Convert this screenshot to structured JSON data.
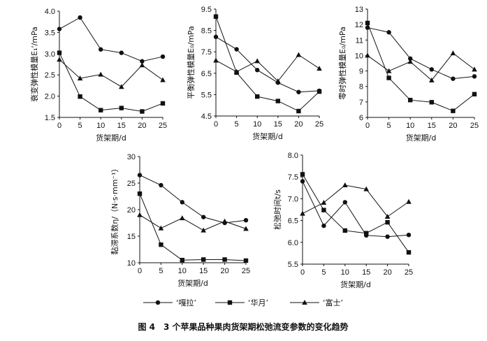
{
  "caption": "图 4　3 个苹果品种果肉货架期松弛流变参数的变化趋势",
  "legend": [
    "‘嘎拉’",
    "‘华月’",
    "‘富士’"
  ],
  "chart_data": [
    {
      "type": "line",
      "xlabel": "货架期/d",
      "ylabel": "衰变弹性模量E₁'/mPa",
      "x": [
        0,
        5,
        10,
        15,
        20,
        25
      ],
      "xticks": [
        "0",
        "5",
        "10",
        "15",
        "20",
        "25"
      ],
      "ylim": [
        1.5,
        4.0
      ],
      "yticks": [
        "1.5",
        "2.0",
        "2.5",
        "3.0",
        "3.5",
        "4.0"
      ],
      "series": [
        {
          "name": "‘嘎拉’",
          "marker": "circle",
          "values": [
            3.58,
            3.85,
            3.1,
            3.02,
            2.82,
            2.93
          ]
        },
        {
          "name": "‘华月’",
          "marker": "square",
          "values": [
            3.02,
            1.99,
            1.67,
            1.72,
            1.64,
            1.83
          ]
        },
        {
          "name": "‘富士’",
          "marker": "triangle",
          "values": [
            2.86,
            2.42,
            2.51,
            2.22,
            2.73,
            2.38
          ]
        }
      ]
    },
    {
      "type": "line",
      "xlabel": "货架期/d",
      "ylabel": "平衡弹性模量E₀/mPa",
      "x": [
        0,
        5,
        10,
        15,
        20,
        25
      ],
      "xticks": [
        "0",
        "5",
        "10",
        "15",
        "20",
        "25"
      ],
      "ylim": [
        4.5,
        9.5
      ],
      "yticks": [
        "4.5",
        "5.5",
        "6.5",
        "7.5",
        "8.5",
        "9.5"
      ],
      "series": [
        {
          "name": "‘嘎拉’",
          "marker": "circle",
          "values": [
            8.2,
            7.62,
            6.65,
            6.06,
            5.62,
            5.68
          ]
        },
        {
          "name": "‘华月’",
          "marker": "square",
          "values": [
            9.15,
            6.53,
            5.41,
            5.2,
            4.73,
            5.64
          ]
        },
        {
          "name": "‘富士’",
          "marker": "triangle",
          "values": [
            7.1,
            6.57,
            7.07,
            6.13,
            7.36,
            6.72
          ]
        }
      ]
    },
    {
      "type": "line",
      "xlabel": "货架期/d",
      "ylabel": "零时弹性模量E₀/mPa",
      "x": [
        0,
        5,
        10,
        15,
        20,
        25
      ],
      "xticks": [
        "0",
        "5",
        "10",
        "15",
        "20",
        "25"
      ],
      "ylim": [
        6,
        13
      ],
      "yticks": [
        "6",
        "7",
        "8",
        "9",
        "10",
        "11",
        "12",
        "13"
      ],
      "series": [
        {
          "name": "‘嘎拉’",
          "marker": "circle",
          "values": [
            11.8,
            11.5,
            9.8,
            9.1,
            8.5,
            8.65
          ]
        },
        {
          "name": "‘华月’",
          "marker": "square",
          "values": [
            12.1,
            8.55,
            7.12,
            6.98,
            6.42,
            7.5
          ]
        },
        {
          "name": "‘富士’",
          "marker": "triangle",
          "values": [
            10.0,
            9.0,
            9.6,
            8.4,
            10.15,
            9.1
          ]
        }
      ]
    },
    {
      "type": "line",
      "xlabel": "货架期/d",
      "ylabel": "黏滞系数η/（N·s·mm⁻¹）",
      "x": [
        0,
        5,
        10,
        15,
        20,
        25
      ],
      "xticks": [
        "0",
        "5",
        "10",
        "15",
        "20",
        "25"
      ],
      "ylim": [
        10,
        30
      ],
      "yticks": [
        "10",
        "15",
        "20",
        "25",
        "30"
      ],
      "series": [
        {
          "name": "‘嘎拉’",
          "marker": "circle",
          "values": [
            26.5,
            24.6,
            21.4,
            18.6,
            17.5,
            18.0
          ]
        },
        {
          "name": "‘华月’",
          "marker": "square",
          "values": [
            23.0,
            13.4,
            10.5,
            10.6,
            10.6,
            10.4
          ]
        },
        {
          "name": "‘富士’",
          "marker": "triangle",
          "values": [
            19.0,
            16.5,
            18.4,
            16.1,
            17.8,
            16.4
          ]
        }
      ]
    },
    {
      "type": "line",
      "xlabel": "货架期/d",
      "ylabel": "松弛时间t/s",
      "x": [
        0,
        5,
        10,
        15,
        20,
        25
      ],
      "xticks": [
        "0",
        "5",
        "10",
        "15",
        "20",
        "25"
      ],
      "ylim": [
        5.5,
        8.0
      ],
      "yticks": [
        "5.5",
        "6.0",
        "6.5",
        "7.0",
        "7.5",
        "8.0"
      ],
      "series": [
        {
          "name": "‘嘎拉’",
          "marker": "circle",
          "values": [
            7.4,
            6.38,
            6.92,
            6.16,
            6.13,
            6.17
          ]
        },
        {
          "name": "‘华月’",
          "marker": "square",
          "values": [
            7.56,
            6.74,
            6.27,
            6.21,
            6.46,
            5.77
          ]
        },
        {
          "name": "‘富士’",
          "marker": "triangle",
          "values": [
            6.66,
            6.91,
            7.31,
            7.22,
            6.59,
            6.93
          ]
        }
      ]
    }
  ]
}
